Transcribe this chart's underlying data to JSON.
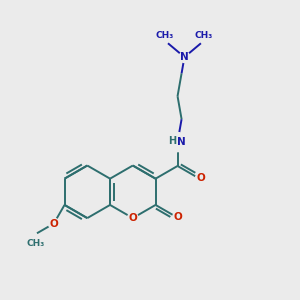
{
  "bg_color": "#ebebeb",
  "bond_color": "#2d6e6e",
  "bond_lw": 1.4,
  "o_color": "#cc2200",
  "n_color": "#1a1aaa",
  "figsize": [
    3.0,
    3.0
  ],
  "dpi": 100,
  "xlim": [
    0,
    10
  ],
  "ylim": [
    0,
    10
  ]
}
